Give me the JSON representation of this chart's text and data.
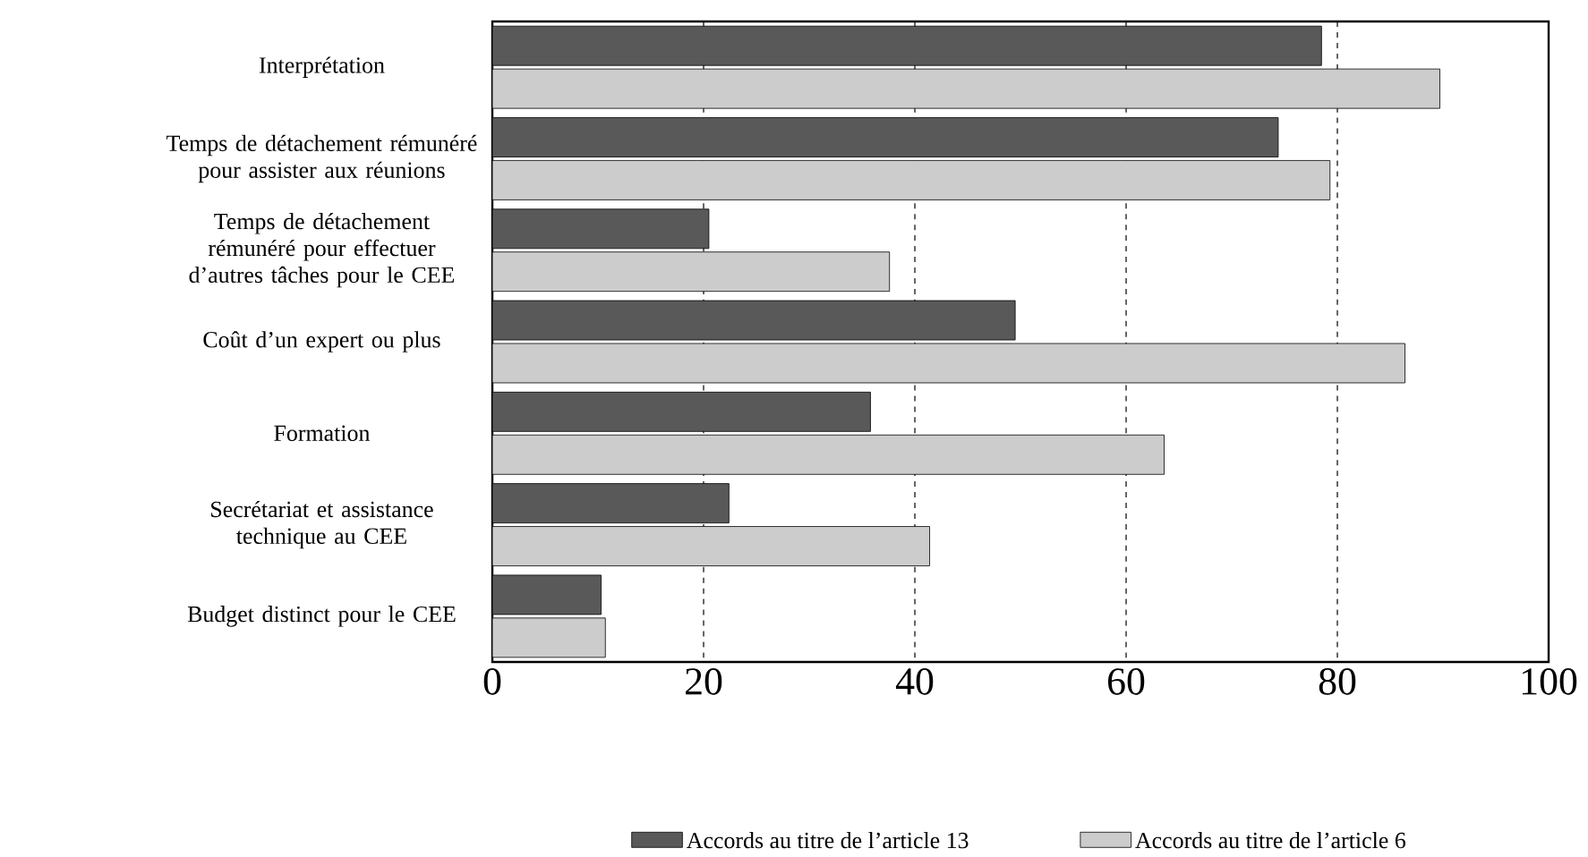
{
  "chart_data": {
    "type": "bar",
    "orientation": "horizontal",
    "categories": [
      "Interprétation",
      "Temps de détachement rémunéré pour assister aux réunions",
      "Temps de détachement rémunéré pour effectuer d’autres tâches pour le CEE",
      "Coût d’un expert ou plus",
      "Formation",
      "Secrétariat et assistance technique au CEE",
      "Budget distinct pour le CEE"
    ],
    "series": [
      {
        "name": "Accords au titre de l’article 13",
        "color": "#595959",
        "values": [
          78.5,
          74.4,
          20.5,
          49.5,
          35.8,
          22.4,
          10.3
        ]
      },
      {
        "name": "Accords au titre de l’article 6",
        "color": "#cccccc",
        "values": [
          89.7,
          79.3,
          37.6,
          86.4,
          63.6,
          41.4,
          10.7
        ]
      }
    ],
    "xlim": [
      0,
      100
    ],
    "xticks": [
      0,
      20,
      40,
      60,
      80,
      100
    ],
    "grid": "x",
    "legend": "bottom"
  }
}
